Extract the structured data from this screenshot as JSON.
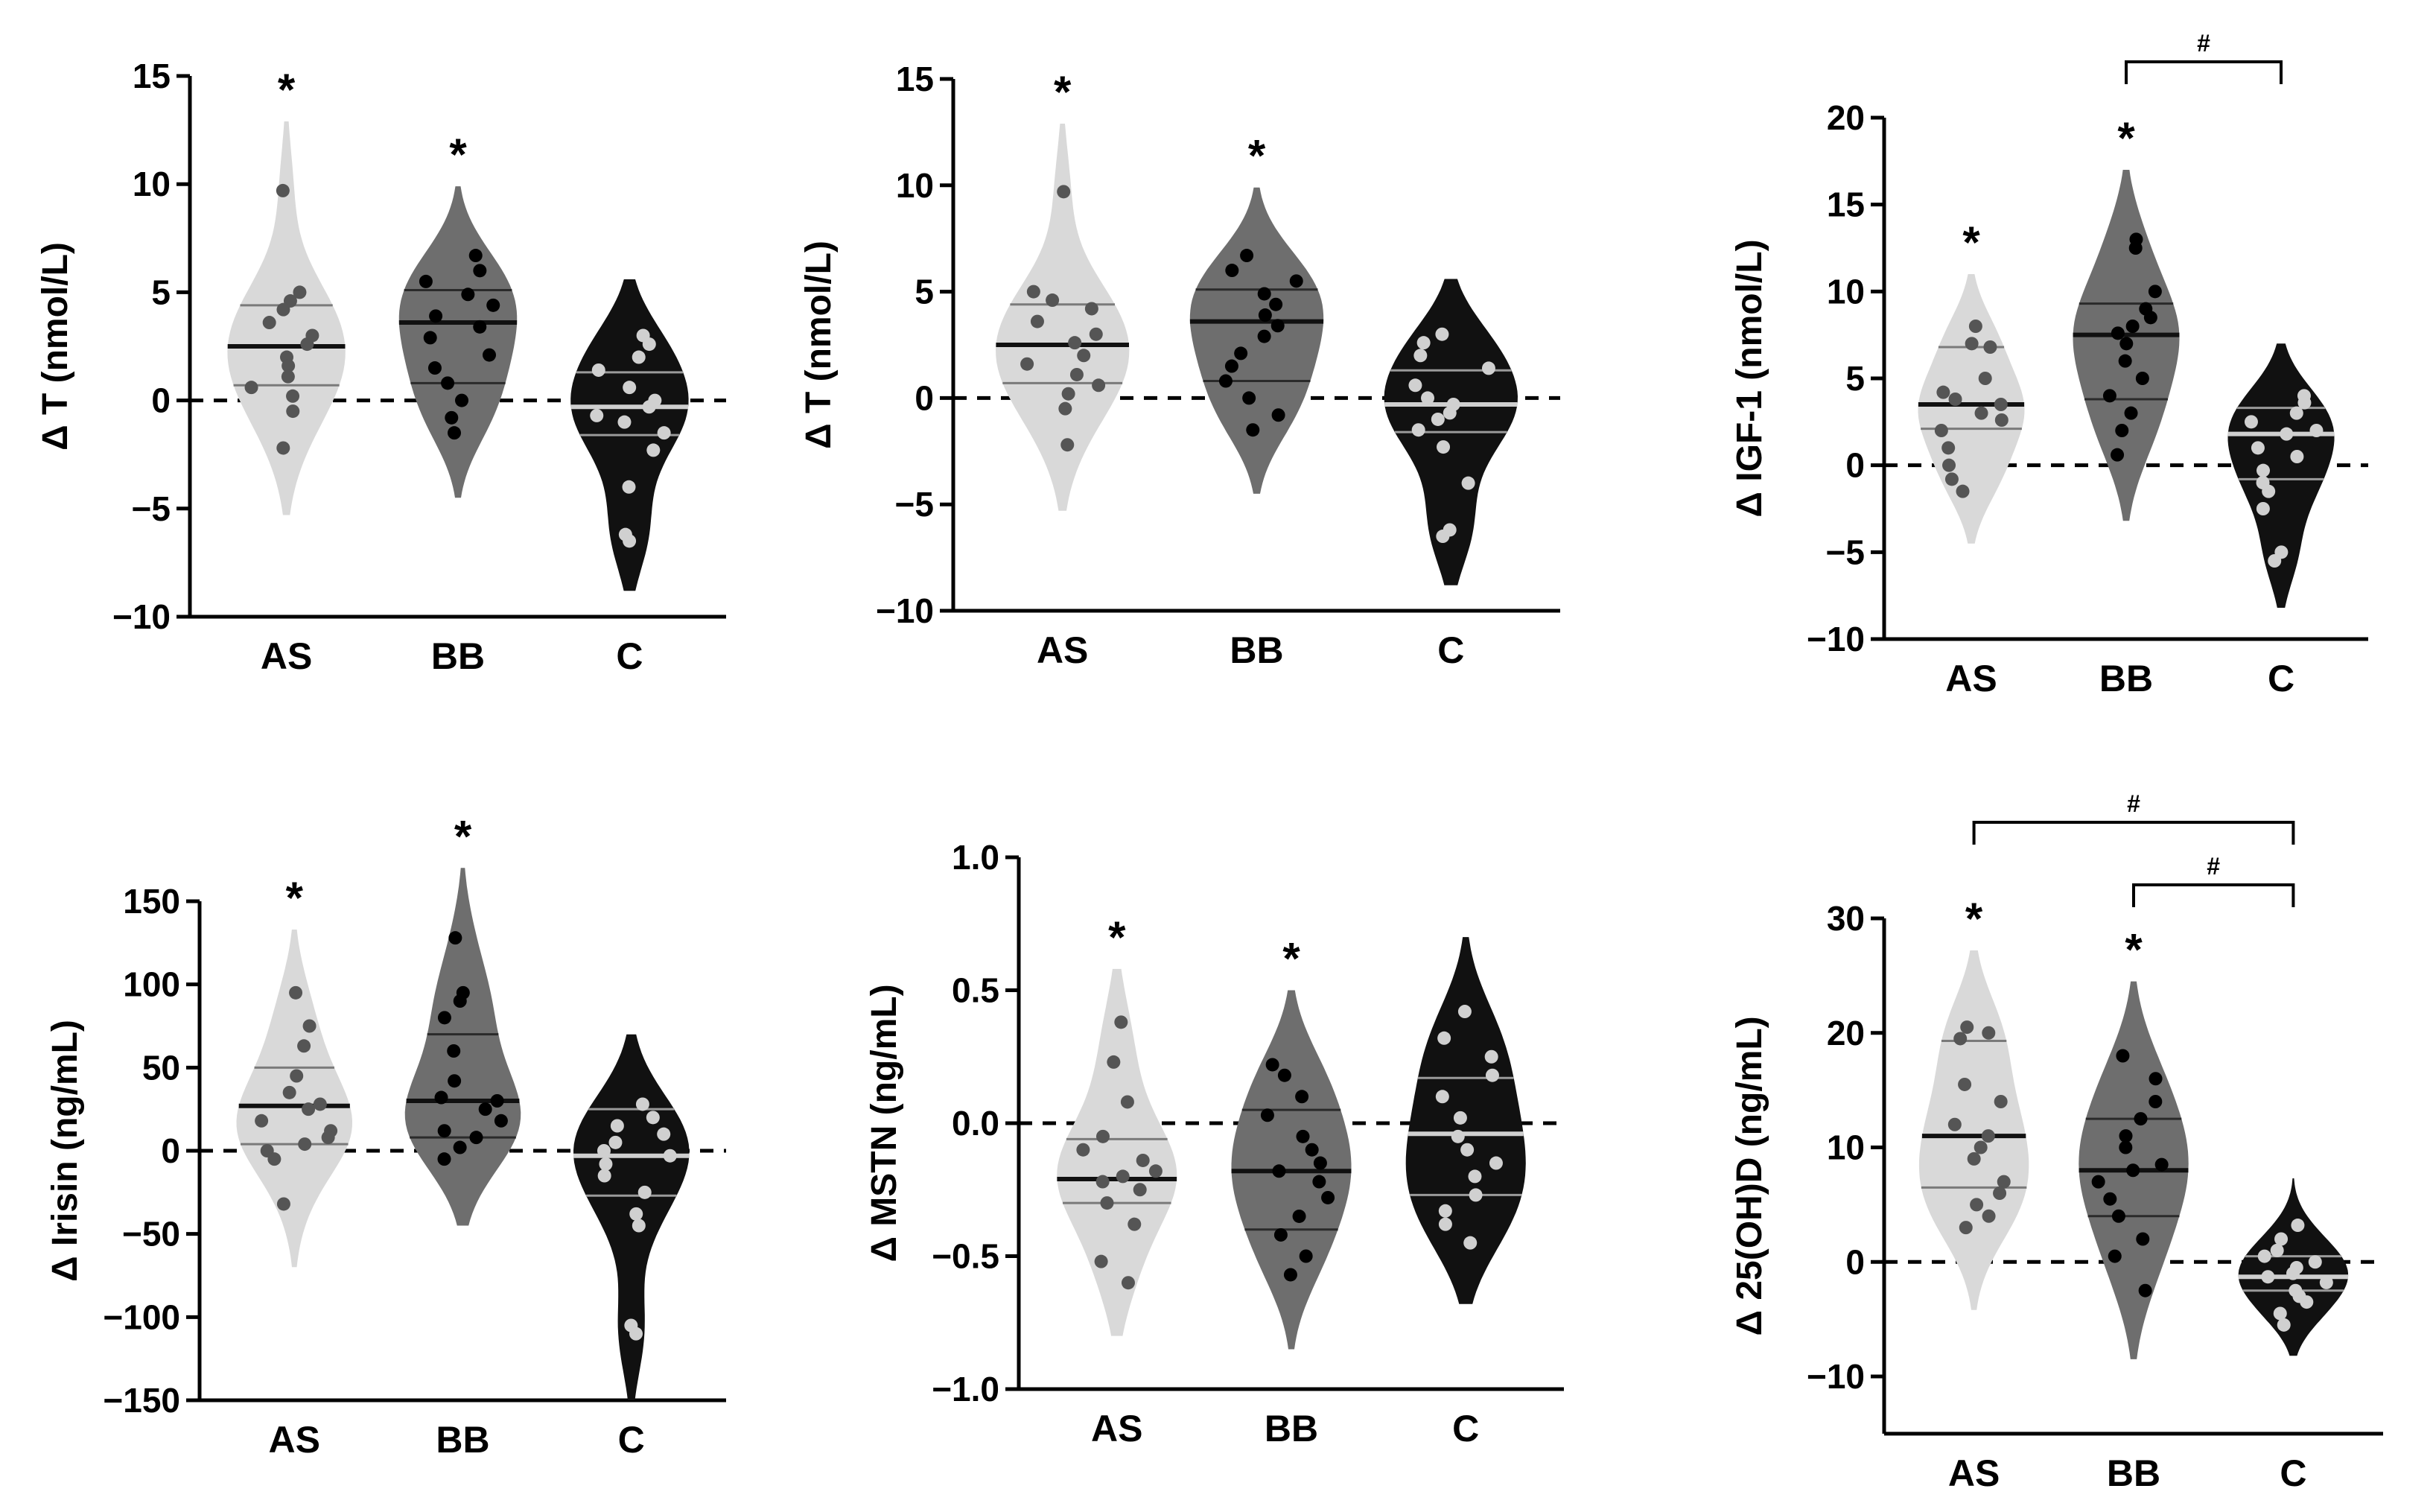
{
  "figure": {
    "colors": {
      "AS": "#d9d9d9",
      "BB": "#6e6e6e",
      "C": "#111111",
      "dots_light": "#555555",
      "dots_dark": "#000000",
      "dots_on_black": "#d0d0d0",
      "axis": "#000000"
    }
  },
  "chart_data": [
    {
      "type": "violin",
      "ylabel": "Δ T (nmol/L)",
      "ylim": [
        -10,
        15
      ],
      "yticks": [
        -10,
        -5,
        0,
        5,
        10,
        15
      ],
      "categories": [
        "AS",
        "BB",
        "C"
      ],
      "reference_line": 0,
      "series": [
        {
          "name": "AS",
          "range": [
            -5.3,
            12.9
          ],
          "median": 2.5,
          "q1": 0.7,
          "q3": 4.4,
          "points": [
            9.7,
            5.0,
            4.6,
            4.2,
            3.6,
            3.0,
            2.6,
            2.0,
            1.6,
            1.1,
            0.6,
            0.2,
            -0.5,
            -2.2
          ],
          "significance": "*"
        },
        {
          "name": "BB",
          "range": [
            -4.5,
            9.9
          ],
          "median": 3.6,
          "q1": 0.8,
          "q3": 5.1,
          "points": [
            6.7,
            6.0,
            5.5,
            4.9,
            4.4,
            3.9,
            3.4,
            2.9,
            2.1,
            1.5,
            0.8,
            0.0,
            -0.8,
            -1.5
          ],
          "significance": "*"
        },
        {
          "name": "C",
          "range": [
            -8.8,
            5.6
          ],
          "median": -0.3,
          "q1": -1.6,
          "q3": 1.3,
          "points": [
            3.0,
            2.6,
            2.0,
            1.4,
            0.6,
            0.0,
            -0.3,
            -0.7,
            -1.0,
            -1.5,
            -2.3,
            -4.0,
            -6.2,
            -6.5
          ],
          "significance": ""
        }
      ],
      "brackets": []
    },
    {
      "type": "violin",
      "ylabel": "Δ T (nmol/L)",
      "ylim": [
        -10,
        15
      ],
      "yticks": [
        -10,
        -5,
        0,
        5,
        10,
        15
      ],
      "categories": [
        "AS",
        "BB",
        "C"
      ],
      "reference_line": 0,
      "series": [
        {
          "name": "AS",
          "range": [
            -5.3,
            12.9
          ],
          "median": 2.5,
          "q1": 0.7,
          "q3": 4.4,
          "points": [
            9.7,
            5.0,
            4.6,
            4.2,
            3.6,
            3.0,
            2.6,
            2.0,
            1.6,
            1.1,
            0.6,
            0.2,
            -0.5,
            -2.2
          ],
          "significance": "*"
        },
        {
          "name": "BB",
          "range": [
            -4.5,
            9.9
          ],
          "median": 3.6,
          "q1": 0.8,
          "q3": 5.1,
          "points": [
            6.7,
            6.0,
            5.5,
            4.9,
            4.4,
            3.9,
            3.4,
            2.9,
            2.1,
            1.5,
            0.8,
            0.0,
            -0.8,
            -1.5
          ],
          "significance": "*"
        },
        {
          "name": "C",
          "range": [
            -8.8,
            5.6
          ],
          "median": -0.3,
          "q1": -1.6,
          "q3": 1.3,
          "points": [
            3.0,
            2.6,
            2.0,
            1.4,
            0.6,
            0.0,
            -0.3,
            -0.7,
            -1.0,
            -1.5,
            -2.3,
            -4.0,
            -6.2,
            -6.5
          ],
          "significance": ""
        }
      ],
      "brackets": []
    },
    {
      "type": "violin",
      "ylabel": "Δ IGF-1 (nmol/L)",
      "ylim": [
        -10,
        20
      ],
      "yticks": [
        -10,
        -5,
        0,
        5,
        10,
        15,
        20
      ],
      "categories": [
        "AS",
        "BB",
        "C"
      ],
      "reference_line": 0,
      "series": [
        {
          "name": "AS",
          "range": [
            -4.5,
            11.0
          ],
          "median": 3.5,
          "q1": 2.1,
          "q3": 6.8,
          "points": [
            8.0,
            7.0,
            6.8,
            5.0,
            4.2,
            3.8,
            3.5,
            3.0,
            2.6,
            2.0,
            1.0,
            0.0,
            -0.8,
            -1.5
          ],
          "significance": "*"
        },
        {
          "name": "BB",
          "range": [
            -3.2,
            17.0
          ],
          "median": 7.5,
          "q1": 3.8,
          "q3": 9.3,
          "points": [
            13.0,
            12.5,
            10.0,
            9.0,
            8.5,
            8.0,
            7.6,
            7.0,
            6.0,
            5.0,
            4.0,
            3.0,
            2.0,
            0.6
          ],
          "significance": "*"
        },
        {
          "name": "C",
          "range": [
            -8.2,
            7.0
          ],
          "median": 1.8,
          "q1": -0.8,
          "q3": 3.3,
          "points": [
            4.0,
            3.6,
            3.0,
            2.5,
            2.0,
            1.8,
            1.0,
            0.5,
            -0.3,
            -1.0,
            -1.5,
            -2.5,
            -5.0,
            -5.5
          ],
          "significance": ""
        }
      ],
      "brackets": [
        {
          "from": "BB",
          "to": "C",
          "label": "#"
        }
      ]
    },
    {
      "type": "violin",
      "ylabel": "Δ Irisin (ng/mL)",
      "ylim": [
        -150,
        150
      ],
      "yticks": [
        -150,
        -100,
        -50,
        0,
        50,
        100,
        150
      ],
      "categories": [
        "AS",
        "BB",
        "C"
      ],
      "reference_line": 0,
      "series": [
        {
          "name": "AS",
          "range": [
            -70,
            133
          ],
          "median": 27,
          "q1": 4,
          "q3": 50,
          "points": [
            95,
            75,
            63,
            45,
            35,
            28,
            25,
            18,
            12,
            8,
            4,
            0,
            -5,
            -32
          ],
          "significance": "*"
        },
        {
          "name": "BB",
          "range": [
            -45,
            170
          ],
          "median": 30,
          "q1": 8,
          "q3": 70,
          "points": [
            128,
            95,
            90,
            80,
            60,
            42,
            32,
            30,
            25,
            18,
            12,
            8,
            2,
            -5
          ],
          "significance": "*"
        },
        {
          "name": "C",
          "range": [
            -150,
            70
          ],
          "median": -3,
          "q1": -27,
          "q3": 25,
          "points": [
            28,
            20,
            15,
            10,
            5,
            0,
            -3,
            -8,
            -15,
            -25,
            -38,
            -45,
            -105,
            -110
          ],
          "significance": ""
        }
      ],
      "brackets": []
    },
    {
      "type": "violin",
      "ylabel": "Δ MSTN (ng/mL)",
      "ylim": [
        -1.0,
        1.0
      ],
      "yticks": [
        "-1.0",
        "-0.5",
        "0.0",
        "0.5",
        "1.0"
      ],
      "categories": [
        "AS",
        "BB",
        "C"
      ],
      "reference_line": 0.0,
      "series": [
        {
          "name": "AS",
          "range": [
            -0.8,
            0.58
          ],
          "median": -0.21,
          "q1": -0.3,
          "q3": -0.06,
          "points": [
            0.38,
            0.23,
            0.08,
            -0.05,
            -0.1,
            -0.14,
            -0.18,
            -0.2,
            -0.22,
            -0.25,
            -0.3,
            -0.38,
            -0.52,
            -0.6
          ],
          "significance": "*"
        },
        {
          "name": "BB",
          "range": [
            -0.85,
            0.5
          ],
          "median": -0.18,
          "q1": -0.4,
          "q3": 0.05,
          "points": [
            0.22,
            0.18,
            0.1,
            0.03,
            -0.05,
            -0.1,
            -0.15,
            -0.18,
            -0.22,
            -0.28,
            -0.35,
            -0.42,
            -0.5,
            -0.57
          ],
          "significance": "*"
        },
        {
          "name": "C",
          "range": [
            -0.68,
            0.7
          ],
          "median": -0.04,
          "q1": -0.27,
          "q3": 0.17,
          "points": [
            0.42,
            0.32,
            0.25,
            0.18,
            0.1,
            0.02,
            -0.05,
            -0.1,
            -0.15,
            -0.2,
            -0.27,
            -0.33,
            -0.38,
            -0.45
          ],
          "significance": ""
        }
      ],
      "brackets": []
    },
    {
      "type": "violin",
      "ylabel": "Δ 25(OH)D (ng/mL)",
      "ylim": [
        -15,
        30
      ],
      "yticks": [
        -10,
        0,
        10,
        20,
        30
      ],
      "categories": [
        "AS",
        "BB",
        "C"
      ],
      "reference_line": 0,
      "series": [
        {
          "name": "AS",
          "range": [
            -4.2,
            27.2
          ],
          "median": 11,
          "q1": 6.5,
          "q3": 19.3,
          "points": [
            20.5,
            20.0,
            19.5,
            15.5,
            14.0,
            12.0,
            11.0,
            10.0,
            9.0,
            7.0,
            6.0,
            5.0,
            4.0,
            3.0
          ],
          "significance": "*"
        },
        {
          "name": "BB",
          "range": [
            -8.5,
            24.5
          ],
          "median": 8,
          "q1": 4,
          "q3": 12.5,
          "points": [
            18.0,
            16.0,
            14.0,
            12.5,
            11.0,
            10.0,
            8.5,
            8.0,
            7.0,
            5.5,
            4.0,
            2.0,
            0.5,
            -2.5
          ],
          "significance": "*"
        },
        {
          "name": "C",
          "range": [
            -8.2,
            7.3
          ],
          "median": -1.3,
          "q1": -2.5,
          "q3": 0.5,
          "points": [
            3.2,
            2.0,
            1.0,
            0.5,
            0.0,
            -0.5,
            -1.0,
            -1.3,
            -1.8,
            -2.5,
            -3.0,
            -3.5,
            -4.5,
            -5.5
          ],
          "significance": ""
        }
      ],
      "brackets": [
        {
          "from": "AS",
          "to": "C",
          "label": "#"
        },
        {
          "from": "BB",
          "to": "C",
          "label": "#"
        }
      ]
    }
  ]
}
